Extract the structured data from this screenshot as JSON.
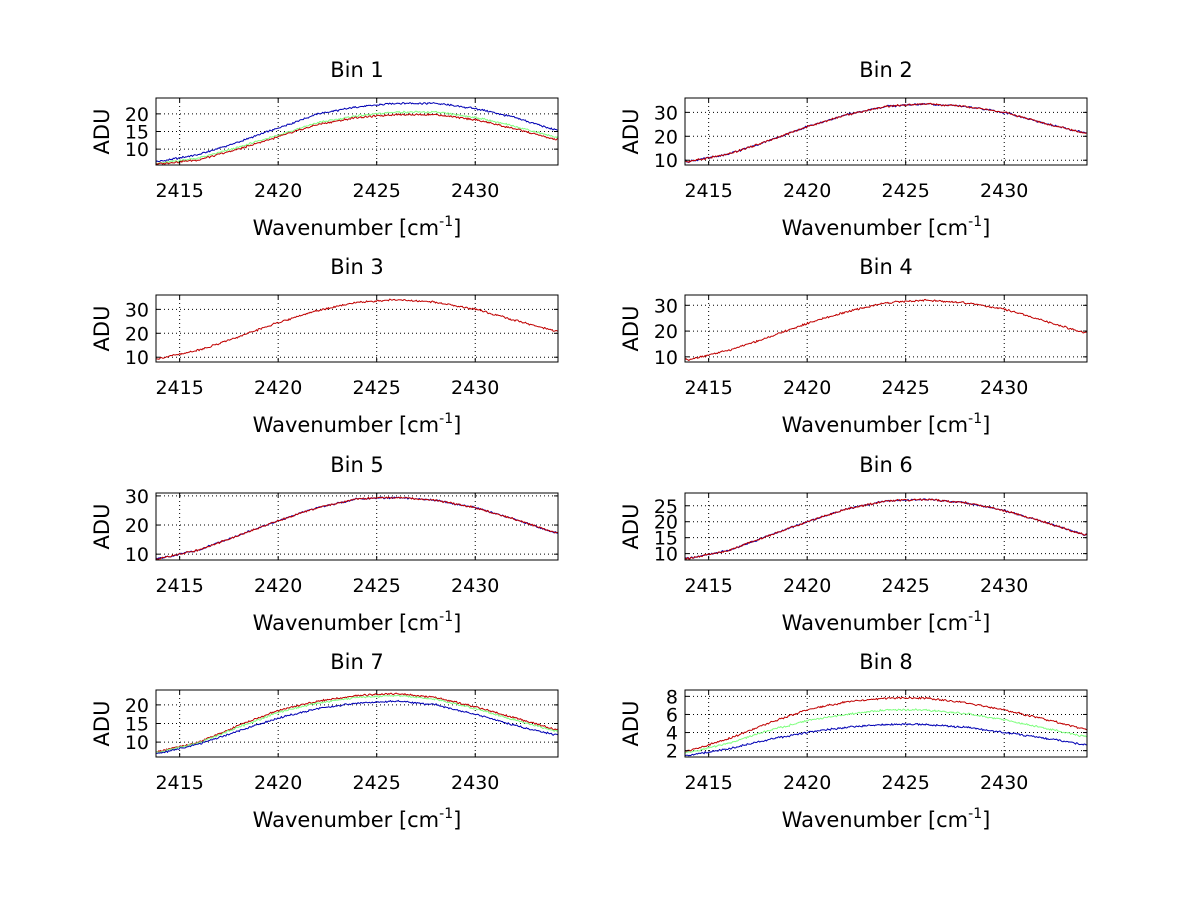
{
  "figure": {
    "colors": {
      "blue": "#0000b4",
      "green": "#80ff80",
      "red": "#c00000",
      "grid": "#000000"
    },
    "xlabel_main": "Wavenumber [cm",
    "xlabel_sup": "-1",
    "xlabel_close": "]",
    "ylabel": "ADU"
  },
  "chart_data": [
    {
      "type": "line",
      "title": "Bin 1",
      "xlabel": "Wavenumber [cm-1]",
      "ylabel": "ADU",
      "xlim": [
        2413.8,
        2434.2
      ],
      "ylim": [
        5.5,
        24.5
      ],
      "xticks": [
        2415,
        2420,
        2425,
        2430
      ],
      "yticks": [
        10,
        15,
        20
      ],
      "x": [
        2414,
        2416,
        2418,
        2420,
        2422,
        2424,
        2426,
        2428,
        2430,
        2432,
        2434
      ],
      "series": [
        {
          "color": "blue",
          "values": [
            6.5,
            8.5,
            12.0,
            16.0,
            20.0,
            22.0,
            23.0,
            23.0,
            21.5,
            19.0,
            15.5
          ]
        },
        {
          "color": "green",
          "values": [
            6.0,
            7.5,
            10.5,
            14.0,
            17.5,
            19.5,
            20.5,
            20.5,
            19.0,
            16.5,
            13.5
          ]
        },
        {
          "color": "red",
          "values": [
            5.8,
            7.0,
            10.0,
            13.5,
            17.0,
            19.0,
            19.8,
            19.8,
            18.3,
            15.8,
            12.8
          ]
        }
      ],
      "grid": true
    },
    {
      "type": "line",
      "title": "Bin 2",
      "xlabel": "Wavenumber [cm-1]",
      "ylabel": "ADU",
      "xlim": [
        2413.8,
        2434.2
      ],
      "ylim": [
        8,
        36
      ],
      "xticks": [
        2415,
        2420,
        2425,
        2430
      ],
      "yticks": [
        10,
        20,
        30
      ],
      "x": [
        2414,
        2416,
        2418,
        2420,
        2422,
        2424,
        2426,
        2428,
        2430,
        2432,
        2434
      ],
      "series": [
        {
          "color": "blue",
          "values": [
            9.5,
            12.5,
            18.0,
            24.0,
            29.0,
            32.5,
            33.5,
            32.5,
            30.0,
            25.5,
            21.5
          ]
        },
        {
          "color": "red",
          "values": [
            9.5,
            12.5,
            18.0,
            24.0,
            29.0,
            32.5,
            33.5,
            32.5,
            30.0,
            25.5,
            21.5
          ]
        }
      ],
      "grid": true
    },
    {
      "type": "line",
      "title": "Bin 3",
      "xlabel": "Wavenumber [cm-1]",
      "ylabel": "ADU",
      "xlim": [
        2413.8,
        2434.2
      ],
      "ylim": [
        8,
        36
      ],
      "xticks": [
        2415,
        2420,
        2425,
        2430
      ],
      "yticks": [
        10,
        20,
        30
      ],
      "x": [
        2414,
        2416,
        2418,
        2420,
        2422,
        2424,
        2426,
        2428,
        2430,
        2432,
        2434
      ],
      "series": [
        {
          "color": "red",
          "values": [
            9.5,
            13.0,
            18.5,
            24.5,
            29.5,
            33.0,
            34.0,
            33.0,
            30.0,
            25.5,
            21.0
          ]
        }
      ],
      "grid": true
    },
    {
      "type": "line",
      "title": "Bin 4",
      "xlabel": "Wavenumber [cm-1]",
      "ylabel": "ADU",
      "xlim": [
        2413.8,
        2434.2
      ],
      "ylim": [
        8,
        34
      ],
      "xticks": [
        2415,
        2420,
        2425,
        2430
      ],
      "yticks": [
        10,
        20,
        30
      ],
      "x": [
        2414,
        2416,
        2418,
        2420,
        2422,
        2424,
        2426,
        2428,
        2430,
        2432,
        2434
      ],
      "series": [
        {
          "color": "red",
          "values": [
            9.0,
            12.5,
            17.5,
            23.0,
            27.5,
            31.0,
            32.0,
            31.0,
            28.5,
            24.0,
            19.5
          ]
        }
      ],
      "grid": true
    },
    {
      "type": "line",
      "title": "Bin 5",
      "xlabel": "Wavenumber [cm-1]",
      "ylabel": "ADU",
      "xlim": [
        2413.8,
        2434.2
      ],
      "ylim": [
        8,
        31
      ],
      "xticks": [
        2415,
        2420,
        2425,
        2430
      ],
      "yticks": [
        10,
        20,
        30
      ],
      "x": [
        2414,
        2416,
        2418,
        2420,
        2422,
        2424,
        2426,
        2428,
        2430,
        2432,
        2434
      ],
      "series": [
        {
          "color": "blue",
          "values": [
            8.5,
            11.5,
            16.5,
            21.5,
            26.0,
            29.0,
            29.5,
            28.5,
            26.0,
            22.0,
            17.5
          ]
        },
        {
          "color": "red",
          "values": [
            8.5,
            11.5,
            16.5,
            21.5,
            26.0,
            29.0,
            29.5,
            28.5,
            26.0,
            22.0,
            17.5
          ]
        }
      ],
      "grid": true
    },
    {
      "type": "line",
      "title": "Bin 6",
      "xlabel": "Wavenumber [cm-1]",
      "ylabel": "ADU",
      "xlim": [
        2413.8,
        2434.2
      ],
      "ylim": [
        8,
        29
      ],
      "xticks": [
        2415,
        2420,
        2425,
        2430
      ],
      "yticks": [
        10,
        15,
        20,
        25
      ],
      "x": [
        2414,
        2416,
        2418,
        2420,
        2422,
        2424,
        2426,
        2428,
        2430,
        2432,
        2434
      ],
      "series": [
        {
          "color": "blue",
          "values": [
            8.5,
            11.0,
            15.5,
            20.0,
            24.0,
            26.5,
            27.0,
            26.0,
            23.5,
            20.0,
            16.0
          ]
        },
        {
          "color": "red",
          "values": [
            8.5,
            11.0,
            15.5,
            20.0,
            24.0,
            26.5,
            27.0,
            26.0,
            23.5,
            20.0,
            16.0
          ]
        }
      ],
      "grid": true
    },
    {
      "type": "line",
      "title": "Bin 7",
      "xlabel": "Wavenumber [cm-1]",
      "ylabel": "ADU",
      "xlim": [
        2413.8,
        2434.2
      ],
      "ylim": [
        6,
        24
      ],
      "xticks": [
        2415,
        2420,
        2425,
        2430
      ],
      "yticks": [
        10,
        15,
        20
      ],
      "x": [
        2414,
        2416,
        2418,
        2420,
        2422,
        2424,
        2426,
        2428,
        2430,
        2432,
        2434
      ],
      "series": [
        {
          "color": "red",
          "values": [
            7.5,
            10.0,
            14.5,
            18.5,
            21.0,
            22.5,
            23.0,
            22.0,
            19.5,
            16.5,
            13.5
          ]
        },
        {
          "color": "green",
          "values": [
            7.3,
            9.8,
            14.0,
            18.0,
            20.5,
            22.0,
            22.5,
            21.5,
            19.0,
            16.0,
            13.0
          ]
        },
        {
          "color": "blue",
          "values": [
            7.0,
            9.5,
            13.0,
            16.5,
            19.0,
            20.5,
            21.0,
            20.0,
            17.5,
            14.5,
            12.0
          ]
        }
      ],
      "grid": true
    },
    {
      "type": "line",
      "title": "Bin 8",
      "xlabel": "Wavenumber [cm-1]",
      "ylabel": "ADU",
      "xlim": [
        2413.8,
        2434.2
      ],
      "ylim": [
        1.3,
        8.7
      ],
      "xticks": [
        2415,
        2420,
        2425,
        2430
      ],
      "yticks": [
        2,
        4,
        6,
        8
      ],
      "x": [
        2414,
        2416,
        2418,
        2420,
        2422,
        2424,
        2426,
        2428,
        2430,
        2432,
        2434
      ],
      "series": [
        {
          "color": "red",
          "values": [
            2.0,
            3.3,
            5.0,
            6.5,
            7.4,
            7.8,
            7.8,
            7.3,
            6.5,
            5.5,
            4.4
          ]
        },
        {
          "color": "green",
          "values": [
            1.8,
            2.8,
            4.2,
            5.3,
            6.0,
            6.5,
            6.5,
            6.1,
            5.4,
            4.5,
            3.6
          ]
        },
        {
          "color": "blue",
          "values": [
            1.5,
            2.2,
            3.2,
            4.0,
            4.6,
            4.9,
            4.9,
            4.6,
            4.0,
            3.4,
            2.7
          ]
        }
      ],
      "grid": true
    }
  ]
}
